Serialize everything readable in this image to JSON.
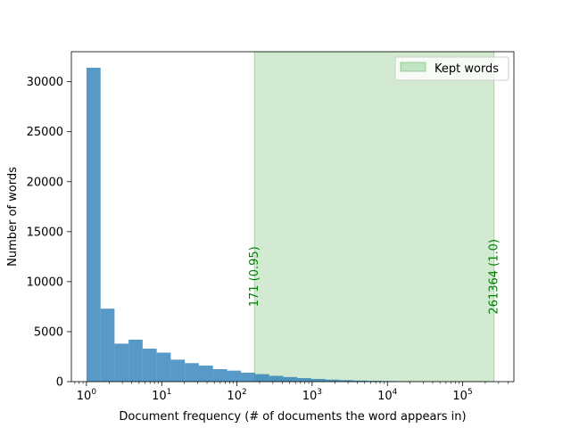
{
  "chart_data": {
    "type": "bar",
    "x_scale": "log",
    "xlim": [
      0.63,
      480000
    ],
    "ylim": [
      0,
      33000
    ],
    "xlabel": "Document frequency (# of documents the word appears in)",
    "ylabel": "Number of words",
    "x_ticks": [
      {
        "value": 1,
        "base": "10",
        "exp": "0"
      },
      {
        "value": 10,
        "base": "10",
        "exp": "1"
      },
      {
        "value": 100,
        "base": "10",
        "exp": "2"
      },
      {
        "value": 1000,
        "base": "10",
        "exp": "3"
      },
      {
        "value": 10000,
        "base": "10",
        "exp": "4"
      },
      {
        "value": 100000,
        "base": "10",
        "exp": "5"
      }
    ],
    "y_ticks": [
      0,
      5000,
      10000,
      15000,
      20000,
      25000,
      30000
    ],
    "y_tick_labels": [
      "0",
      "5000",
      "10000",
      "15000",
      "20000",
      "25000",
      "30000"
    ],
    "bar_color": "#1f77b4",
    "bins": [
      {
        "x0": 1.0,
        "x1": 1.54,
        "count": 31400
      },
      {
        "x0": 1.54,
        "x1": 2.36,
        "count": 7300
      },
      {
        "x0": 2.36,
        "x1": 3.63,
        "count": 3800
      },
      {
        "x0": 3.63,
        "x1": 5.58,
        "count": 4200
      },
      {
        "x0": 5.58,
        "x1": 8.58,
        "count": 3300
      },
      {
        "x0": 8.58,
        "x1": 13.2,
        "count": 2900
      },
      {
        "x0": 13.2,
        "x1": 20.3,
        "count": 2200
      },
      {
        "x0": 20.3,
        "x1": 31.2,
        "count": 1850
      },
      {
        "x0": 31.2,
        "x1": 48.0,
        "count": 1600
      },
      {
        "x0": 48.0,
        "x1": 73.8,
        "count": 1250
      },
      {
        "x0": 73.8,
        "x1": 113,
        "count": 1100
      },
      {
        "x0": 113,
        "x1": 174,
        "count": 900
      },
      {
        "x0": 174,
        "x1": 268,
        "count": 750
      },
      {
        "x0": 268,
        "x1": 412,
        "count": 580
      },
      {
        "x0": 412,
        "x1": 633,
        "count": 460
      },
      {
        "x0": 633,
        "x1": 973,
        "count": 360
      },
      {
        "x0": 973,
        "x1": 1496,
        "count": 270
      },
      {
        "x0": 1496,
        "x1": 2300,
        "count": 200
      },
      {
        "x0": 2300,
        "x1": 3540,
        "count": 150
      },
      {
        "x0": 3540,
        "x1": 5440,
        "count": 110
      },
      {
        "x0": 5440,
        "x1": 8370,
        "count": 80
      },
      {
        "x0": 8370,
        "x1": 12870,
        "count": 55
      },
      {
        "x0": 12870,
        "x1": 19800,
        "count": 40
      },
      {
        "x0": 19800,
        "x1": 30400,
        "count": 28
      },
      {
        "x0": 30400,
        "x1": 46800,
        "count": 20
      },
      {
        "x0": 46800,
        "x1": 72000,
        "count": 14
      },
      {
        "x0": 72000,
        "x1": 110700,
        "count": 10
      },
      {
        "x0": 110700,
        "x1": 170200,
        "count": 6
      },
      {
        "x0": 170200,
        "x1": 261364,
        "count": 4
      }
    ],
    "kept_range": {
      "x0": 171,
      "x1": 261364,
      "color": "#2ca02c"
    },
    "annotations": [
      {
        "x": 171,
        "y": 10500,
        "text": "171 (0.95)"
      },
      {
        "x": 261364,
        "y": 10500,
        "text": "261364 (1.0)"
      }
    ],
    "legend": {
      "placement": "upper-right",
      "entries": [
        {
          "label": "Kept words",
          "color": "#2ca02c"
        }
      ]
    }
  }
}
